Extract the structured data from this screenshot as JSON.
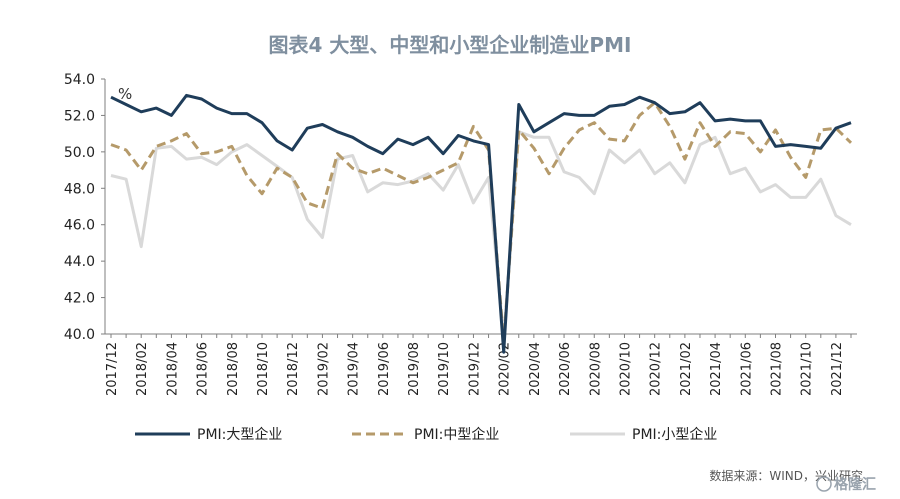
{
  "chart_data": {
    "type": "line",
    "title": "图表4 大型、中型和小型企业制造业PMI",
    "unit": "%",
    "ylim": [
      40,
      54
    ],
    "yticks": [
      "54.0",
      "52.0",
      "50.0",
      "48.0",
      "46.0",
      "44.0",
      "42.0",
      "40.0"
    ],
    "x": [
      "2017/12",
      "2018/01",
      "2018/02",
      "2018/03",
      "2018/04",
      "2018/05",
      "2018/06",
      "2018/07",
      "2018/08",
      "2018/09",
      "2018/10",
      "2018/11",
      "2018/12",
      "2019/01",
      "2019/02",
      "2019/03",
      "2019/04",
      "2019/05",
      "2019/06",
      "2019/07",
      "2019/08",
      "2019/09",
      "2019/10",
      "2019/11",
      "2019/12",
      "2020/01",
      "2020/02",
      "2020/03",
      "2020/04",
      "2020/05",
      "2020/06",
      "2020/07",
      "2020/08",
      "2020/09",
      "2020/10",
      "2020/11",
      "2020/12",
      "2021/01",
      "2021/02",
      "2021/03",
      "2021/04",
      "2021/05",
      "2021/06",
      "2021/07",
      "2021/08",
      "2021/09",
      "2021/10",
      "2021/11",
      "2021/12",
      "2022/01"
    ],
    "xtick_labels": [
      "2017/12",
      "2018/02",
      "2018/04",
      "2018/06",
      "2018/08",
      "2018/10",
      "2018/12",
      "2019/02",
      "2019/04",
      "2019/06",
      "2019/08",
      "2019/10",
      "2019/12",
      "2020/02",
      "2020/04",
      "2020/06",
      "2020/08",
      "2020/10",
      "2020/12",
      "2021/02",
      "2021/04",
      "2021/06",
      "2021/08",
      "2021/10",
      "2021/12"
    ],
    "grid": false,
    "legend_position": "bottom",
    "series": [
      {
        "name": "PMI:大型企业",
        "color": "#1f3d5a",
        "dash": "solid",
        "values": [
          53.0,
          52.6,
          52.2,
          52.4,
          52.0,
          53.1,
          52.9,
          52.4,
          52.1,
          52.1,
          51.6,
          50.6,
          50.1,
          51.3,
          51.5,
          51.1,
          50.8,
          50.3,
          49.9,
          50.7,
          50.4,
          50.8,
          49.9,
          50.9,
          50.6,
          50.4,
          39.0,
          52.6,
          51.1,
          51.6,
          52.1,
          52.0,
          52.0,
          52.5,
          52.6,
          53.0,
          52.7,
          52.1,
          52.2,
          52.7,
          51.7,
          51.8,
          51.7,
          51.7,
          50.3,
          50.4,
          50.3,
          50.2,
          51.3,
          51.6
        ]
      },
      {
        "name": "PMI:中型企业",
        "color": "#b59a6a",
        "dash": "dashed",
        "values": [
          50.4,
          50.1,
          49.0,
          50.3,
          50.6,
          51.0,
          49.9,
          50.0,
          50.3,
          48.7,
          47.7,
          49.1,
          48.6,
          47.2,
          46.9,
          49.9,
          49.1,
          48.8,
          49.1,
          48.7,
          48.3,
          48.6,
          49.0,
          49.4,
          51.4,
          50.1,
          39.5,
          51.2,
          50.2,
          48.8,
          50.2,
          51.2,
          51.6,
          50.7,
          50.6,
          52.0,
          52.7,
          51.4,
          49.6,
          51.6,
          50.3,
          51.1,
          51.0,
          50.0,
          51.2,
          49.7,
          48.6,
          51.2,
          51.3,
          50.5
        ]
      },
      {
        "name": "PMI:小型企业",
        "color": "#d9d9d9",
        "dash": "solid",
        "values": [
          48.7,
          48.5,
          44.8,
          50.2,
          50.3,
          49.6,
          49.7,
          49.3,
          50.0,
          50.4,
          49.8,
          49.2,
          48.6,
          46.3,
          45.3,
          49.6,
          49.8,
          47.8,
          48.3,
          48.2,
          48.4,
          48.8,
          47.9,
          49.3,
          47.2,
          48.6,
          39.7,
          51.1,
          50.8,
          50.8,
          48.9,
          48.6,
          47.7,
          50.1,
          49.4,
          50.1,
          48.8,
          49.4,
          48.3,
          50.4,
          50.8,
          48.8,
          49.1,
          47.8,
          48.2,
          47.5,
          47.5,
          48.5,
          46.5,
          46.0
        ]
      }
    ],
    "source": "数据来源：WIND，兴业研究"
  },
  "logo": {
    "text": "格隆汇"
  }
}
